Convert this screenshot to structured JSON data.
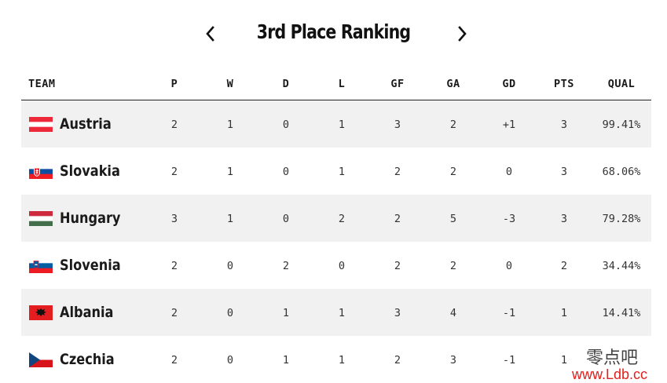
{
  "header": {
    "title": "3rd Place Ranking"
  },
  "columns": {
    "team": "TEAM",
    "p": "P",
    "w": "W",
    "d": "D",
    "l": "L",
    "gf": "GF",
    "ga": "GA",
    "gd": "GD",
    "pts": "PTS",
    "qual": "QUAL"
  },
  "rows": [
    {
      "team": "Austria",
      "flag": "austria-flag",
      "p": "2",
      "w": "1",
      "d": "0",
      "l": "1",
      "gf": "3",
      "ga": "2",
      "gd": "+1",
      "pts": "3",
      "qual": "99.41%"
    },
    {
      "team": "Slovakia",
      "flag": "slovakia-flag",
      "p": "2",
      "w": "1",
      "d": "0",
      "l": "1",
      "gf": "2",
      "ga": "2",
      "gd": "0",
      "pts": "3",
      "qual": "68.06%"
    },
    {
      "team": "Hungary",
      "flag": "hungary-flag",
      "p": "3",
      "w": "1",
      "d": "0",
      "l": "2",
      "gf": "2",
      "ga": "5",
      "gd": "-3",
      "pts": "3",
      "qual": "79.28%"
    },
    {
      "team": "Slovenia",
      "flag": "slovenia-flag",
      "p": "2",
      "w": "0",
      "d": "2",
      "l": "0",
      "gf": "2",
      "ga": "2",
      "gd": "0",
      "pts": "2",
      "qual": "34.44%"
    },
    {
      "team": "Albania",
      "flag": "albania-flag",
      "p": "2",
      "w": "0",
      "d": "1",
      "l": "1",
      "gf": "3",
      "ga": "4",
      "gd": "-1",
      "pts": "1",
      "qual": "14.41%"
    },
    {
      "team": "Czechia",
      "flag": "czechia-flag",
      "p": "2",
      "w": "0",
      "d": "1",
      "l": "1",
      "gf": "2",
      "ga": "3",
      "gd": "-1",
      "pts": "1",
      "qual": ""
    }
  ],
  "watermark": {
    "text": "零点吧",
    "url": "www.Ldb.cc"
  },
  "colors": {
    "row_shade": "#f1f1f1",
    "watermark_url": "#e0201c"
  }
}
